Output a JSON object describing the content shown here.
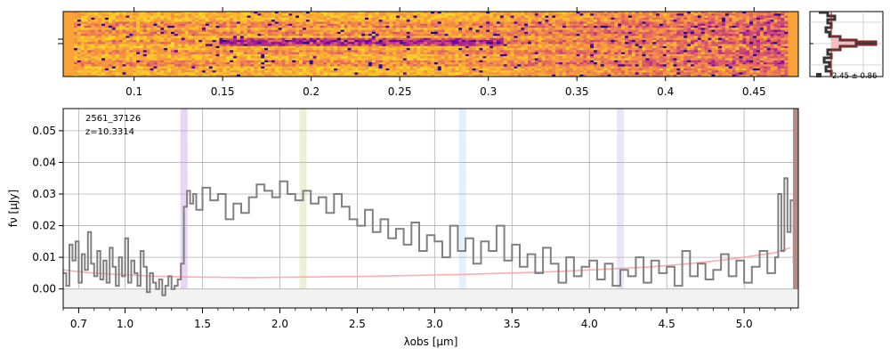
{
  "chart_data": [
    {
      "type": "heatmap",
      "panel": "2d-spectrum",
      "colormap": "plasma",
      "top_axis_ticks": [
        "0.1",
        "0.15",
        "0.2",
        "0.25",
        "0.3",
        "0.35",
        "0.4",
        "0.45"
      ],
      "top_axis_tick_values": [
        0.1,
        0.15,
        0.2,
        0.25,
        0.3,
        0.35,
        0.4,
        0.45
      ],
      "xlim": [
        0.06,
        0.475
      ],
      "trace_rows": [
        0.2,
        0.33,
        0.47,
        0.62,
        0.8
      ]
    },
    {
      "type": "line",
      "panel": "cross-dispersion-profile",
      "annotation": "2.45 ± 0.86"
    },
    {
      "type": "line",
      "panel": "1d-spectrum",
      "annotations": [
        "2561_37126",
        "z=10.3314"
      ],
      "xlabel": "λobs [μm]",
      "ylabel": "fν [μJy]",
      "xticks": [
        "0.7",
        "1.0",
        "1.5",
        "2.0",
        "2.5",
        "3.0",
        "3.5",
        "4.0",
        "4.5",
        "5.0"
      ],
      "xtick_values": [
        0.7,
        1.0,
        1.5,
        2.0,
        2.5,
        3.0,
        3.5,
        4.0,
        4.5,
        5.0
      ],
      "yticks": [
        "0.00",
        "0.01",
        "0.02",
        "0.03",
        "0.04",
        "0.05"
      ],
      "ytick_values": [
        0.0,
        0.01,
        0.02,
        0.03,
        0.04,
        0.05
      ],
      "xlim": [
        0.6,
        5.35
      ],
      "ylim": [
        -0.006,
        0.057
      ],
      "grid": true,
      "line_bands": [
        {
          "x": 1.38,
          "color": "#e0c8f0"
        },
        {
          "x": 2.15,
          "color": "#e6ecc8"
        },
        {
          "x": 3.18,
          "color": "#dcecf8"
        },
        {
          "x": 4.2,
          "color": "#e4dcf6"
        }
      ],
      "series": [
        {
          "color": "#808080",
          "x": [
            0.6,
            0.62,
            0.64,
            0.66,
            0.68,
            0.7,
            0.72,
            0.74,
            0.76,
            0.78,
            0.8,
            0.82,
            0.84,
            0.86,
            0.88,
            0.9,
            0.92,
            0.94,
            0.96,
            0.98,
            1.0,
            1.02,
            1.04,
            1.06,
            1.08,
            1.1,
            1.12,
            1.14,
            1.16,
            1.18,
            1.2,
            1.22,
            1.24,
            1.26,
            1.28,
            1.3,
            1.32,
            1.34,
            1.36,
            1.38,
            1.4,
            1.42,
            1.44,
            1.46,
            1.5,
            1.55,
            1.6,
            1.65,
            1.7,
            1.75,
            1.8,
            1.85,
            1.9,
            1.95,
            2.0,
            2.05,
            2.1,
            2.15,
            2.2,
            2.25,
            2.3,
            2.35,
            2.4,
            2.45,
            2.5,
            2.55,
            2.6,
            2.65,
            2.7,
            2.75,
            2.8,
            2.85,
            2.9,
            2.95,
            3.0,
            3.05,
            3.1,
            3.15,
            3.2,
            3.25,
            3.3,
            3.35,
            3.4,
            3.45,
            3.5,
            3.55,
            3.6,
            3.65,
            3.7,
            3.75,
            3.8,
            3.85,
            3.9,
            3.95,
            4.0,
            4.05,
            4.1,
            4.15,
            4.2,
            4.25,
            4.3,
            4.35,
            4.4,
            4.45,
            4.5,
            4.55,
            4.6,
            4.65,
            4.7,
            4.75,
            4.8,
            4.85,
            4.9,
            4.95,
            5.0,
            5.05,
            5.1,
            5.15,
            5.2,
            5.22,
            5.24,
            5.26,
            5.28,
            5.3,
            5.32,
            5.34
          ],
          "y": [
            0.005,
            0.001,
            0.014,
            0.009,
            0.015,
            0.002,
            0.011,
            0.006,
            0.018,
            0.008,
            0.004,
            0.012,
            0.003,
            0.009,
            0.002,
            0.013,
            0.007,
            0.001,
            0.01,
            0.004,
            0.016,
            0.002,
            0.009,
            0.005,
            0.001,
            0.012,
            0.007,
            -0.001,
            0.005,
            0.002,
            0.0,
            0.003,
            -0.002,
            0.001,
            0.004,
            0.0,
            0.001,
            0.003,
            0.008,
            0.026,
            0.031,
            0.027,
            0.03,
            0.025,
            0.032,
            0.028,
            0.03,
            0.022,
            0.027,
            0.024,
            0.029,
            0.033,
            0.031,
            0.029,
            0.034,
            0.03,
            0.028,
            0.031,
            0.027,
            0.029,
            0.024,
            0.03,
            0.026,
            0.022,
            0.02,
            0.025,
            0.018,
            0.022,
            0.016,
            0.019,
            0.014,
            0.021,
            0.012,
            0.017,
            0.015,
            0.01,
            0.02,
            0.012,
            0.016,
            0.008,
            0.015,
            0.012,
            0.02,
            0.009,
            0.014,
            0.007,
            0.011,
            0.005,
            0.013,
            0.008,
            0.002,
            0.01,
            0.004,
            0.007,
            0.009,
            0.003,
            0.008,
            0.001,
            0.006,
            0.004,
            0.01,
            0.002,
            0.009,
            0.005,
            0.007,
            0.001,
            0.012,
            0.004,
            0.008,
            0.003,
            0.006,
            0.011,
            0.004,
            0.009,
            0.002,
            0.007,
            0.012,
            0.005,
            0.01,
            0.03,
            0.012,
            0.035,
            0.018,
            0.028,
            0.008,
            0.0
          ]
        },
        {
          "color": "#ff9999",
          "x": [
            0.6,
            0.8,
            1.0,
            1.2,
            1.4,
            1.6,
            1.8,
            2.0,
            2.2,
            2.4,
            2.6,
            2.8,
            3.0,
            3.2,
            3.4,
            3.6,
            3.8,
            4.0,
            4.2,
            4.4,
            4.6,
            4.8,
            5.0,
            5.2,
            5.3
          ],
          "y": [
            0.006,
            0.005,
            0.0045,
            0.004,
            0.0038,
            0.0037,
            0.0036,
            0.0037,
            0.0038,
            0.0039,
            0.004,
            0.0042,
            0.0044,
            0.0046,
            0.0049,
            0.0052,
            0.0055,
            0.006,
            0.0065,
            0.007,
            0.0078,
            0.0088,
            0.01,
            0.0115,
            0.013
          ]
        }
      ]
    }
  ]
}
